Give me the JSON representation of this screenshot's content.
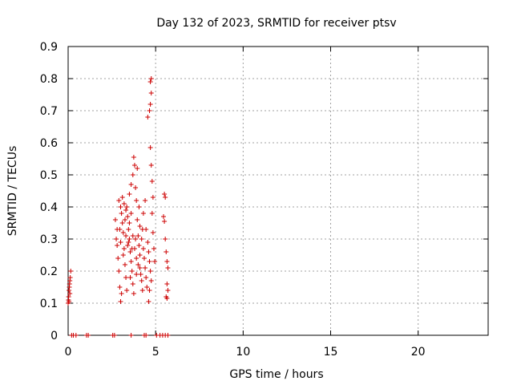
{
  "chart_data": {
    "type": "scatter",
    "title": "Day 132 of 2023, SRMTID for receiver ptsv",
    "xlabel": "GPS time / hours",
    "ylabel": "SRMTID / TECUs",
    "xlim": [
      0,
      24
    ],
    "ylim": [
      0,
      0.9
    ],
    "xticks": [
      0,
      5,
      10,
      15,
      20
    ],
    "yticks": [
      0,
      0.1,
      0.2,
      0.3,
      0.4,
      0.5,
      0.6,
      0.7,
      0.8,
      0.9
    ],
    "xtick_labels": [
      "0",
      "5",
      "10",
      "15",
      "20"
    ],
    "ytick_labels": [
      "0",
      "0.1",
      "0.2",
      "0.3",
      "0.4",
      "0.5",
      "0.6",
      "0.7",
      "0.8",
      "0.9"
    ],
    "grid": true,
    "marker": "+",
    "color": "#cc0000",
    "series": [
      {
        "name": "SRMTID",
        "points": [
          [
            0.0,
            0.1
          ],
          [
            0.02,
            0.11
          ],
          [
            0.03,
            0.12
          ],
          [
            0.05,
            0.14
          ],
          [
            0.07,
            0.15
          ],
          [
            0.08,
            0.16
          ],
          [
            0.1,
            0.17
          ],
          [
            0.12,
            0.18
          ],
          [
            0.15,
            0.2
          ],
          [
            0.1,
            0.13
          ],
          [
            0.05,
            0.105
          ],
          [
            0.2,
            0.0
          ],
          [
            0.3,
            0.0
          ],
          [
            0.45,
            0.0
          ],
          [
            1.05,
            0.0
          ],
          [
            1.15,
            0.0
          ],
          [
            2.55,
            0.0
          ],
          [
            2.65,
            0.0
          ],
          [
            3.6,
            0.0
          ],
          [
            4.35,
            0.0
          ],
          [
            4.45,
            0.0
          ],
          [
            5.05,
            0.0
          ],
          [
            5.25,
            0.0
          ],
          [
            5.4,
            0.0
          ],
          [
            5.55,
            0.0
          ],
          [
            5.7,
            0.0
          ],
          [
            2.7,
            0.36
          ],
          [
            2.75,
            0.3
          ],
          [
            2.8,
            0.28
          ],
          [
            2.85,
            0.24
          ],
          [
            2.9,
            0.2
          ],
          [
            2.95,
            0.15
          ],
          [
            3.0,
            0.105
          ],
          [
            3.05,
            0.13
          ],
          [
            2.8,
            0.33
          ],
          [
            2.9,
            0.42
          ],
          [
            3.0,
            0.4
          ],
          [
            3.05,
            0.38
          ],
          [
            3.1,
            0.35
          ],
          [
            3.15,
            0.32
          ],
          [
            3.2,
            0.27
          ],
          [
            3.25,
            0.22
          ],
          [
            3.3,
            0.18
          ],
          [
            3.35,
            0.14
          ],
          [
            3.1,
            0.43
          ],
          [
            3.2,
            0.41
          ],
          [
            3.3,
            0.39
          ],
          [
            3.4,
            0.37
          ],
          [
            3.45,
            0.33
          ],
          [
            3.5,
            0.3
          ],
          [
            3.55,
            0.26
          ],
          [
            3.6,
            0.23
          ],
          [
            3.65,
            0.2
          ],
          [
            3.7,
            0.16
          ],
          [
            3.75,
            0.13
          ],
          [
            3.5,
            0.44
          ],
          [
            3.6,
            0.47
          ],
          [
            3.7,
            0.5
          ],
          [
            3.8,
            0.53
          ],
          [
            3.75,
            0.555
          ],
          [
            3.85,
            0.46
          ],
          [
            3.9,
            0.42
          ],
          [
            3.95,
            0.36
          ],
          [
            4.0,
            0.31
          ],
          [
            4.05,
            0.28
          ],
          [
            4.1,
            0.25
          ],
          [
            4.15,
            0.19
          ],
          [
            4.2,
            0.17
          ],
          [
            4.25,
            0.14
          ],
          [
            3.95,
            0.52
          ],
          [
            4.05,
            0.4
          ],
          [
            4.1,
            0.34
          ],
          [
            4.2,
            0.3
          ],
          [
            4.3,
            0.27
          ],
          [
            4.35,
            0.24
          ],
          [
            4.4,
            0.21
          ],
          [
            4.45,
            0.18
          ],
          [
            4.5,
            0.15
          ],
          [
            4.3,
            0.38
          ],
          [
            4.4,
            0.42
          ],
          [
            4.45,
            0.33
          ],
          [
            4.55,
            0.29
          ],
          [
            4.6,
            0.26
          ],
          [
            4.65,
            0.23
          ],
          [
            4.7,
            0.2
          ],
          [
            4.75,
            0.17
          ],
          [
            4.6,
            0.105
          ],
          [
            4.65,
            0.14
          ],
          [
            4.55,
            0.68
          ],
          [
            4.65,
            0.7
          ],
          [
            4.7,
            0.72
          ],
          [
            4.75,
            0.755
          ],
          [
            4.7,
            0.79
          ],
          [
            4.75,
            0.8
          ],
          [
            4.7,
            0.585
          ],
          [
            4.75,
            0.53
          ],
          [
            4.8,
            0.48
          ],
          [
            4.85,
            0.43
          ],
          [
            4.8,
            0.38
          ],
          [
            4.85,
            0.32
          ],
          [
            4.9,
            0.27
          ],
          [
            4.95,
            0.23
          ],
          [
            5.5,
            0.44
          ],
          [
            5.55,
            0.43
          ],
          [
            5.45,
            0.37
          ],
          [
            5.5,
            0.355
          ],
          [
            5.55,
            0.3
          ],
          [
            5.6,
            0.26
          ],
          [
            5.65,
            0.23
          ],
          [
            5.7,
            0.21
          ],
          [
            5.65,
            0.16
          ],
          [
            5.7,
            0.14
          ],
          [
            5.6,
            0.12
          ],
          [
            5.65,
            0.115
          ],
          [
            3.3,
            0.31
          ],
          [
            3.4,
            0.28
          ],
          [
            3.5,
            0.35
          ],
          [
            3.6,
            0.38
          ],
          [
            3.7,
            0.31
          ],
          [
            3.8,
            0.27
          ],
          [
            3.9,
            0.24
          ],
          [
            4.0,
            0.22
          ],
          [
            2.95,
            0.33
          ],
          [
            3.0,
            0.29
          ],
          [
            3.15,
            0.25
          ],
          [
            3.25,
            0.36
          ],
          [
            3.35,
            0.4
          ],
          [
            3.45,
            0.29
          ],
          [
            3.55,
            0.18
          ],
          [
            3.65,
            0.27
          ],
          [
            3.85,
            0.3
          ],
          [
            3.9,
            0.19
          ],
          [
            4.1,
            0.21
          ],
          [
            4.25,
            0.33
          ]
        ]
      }
    ]
  }
}
